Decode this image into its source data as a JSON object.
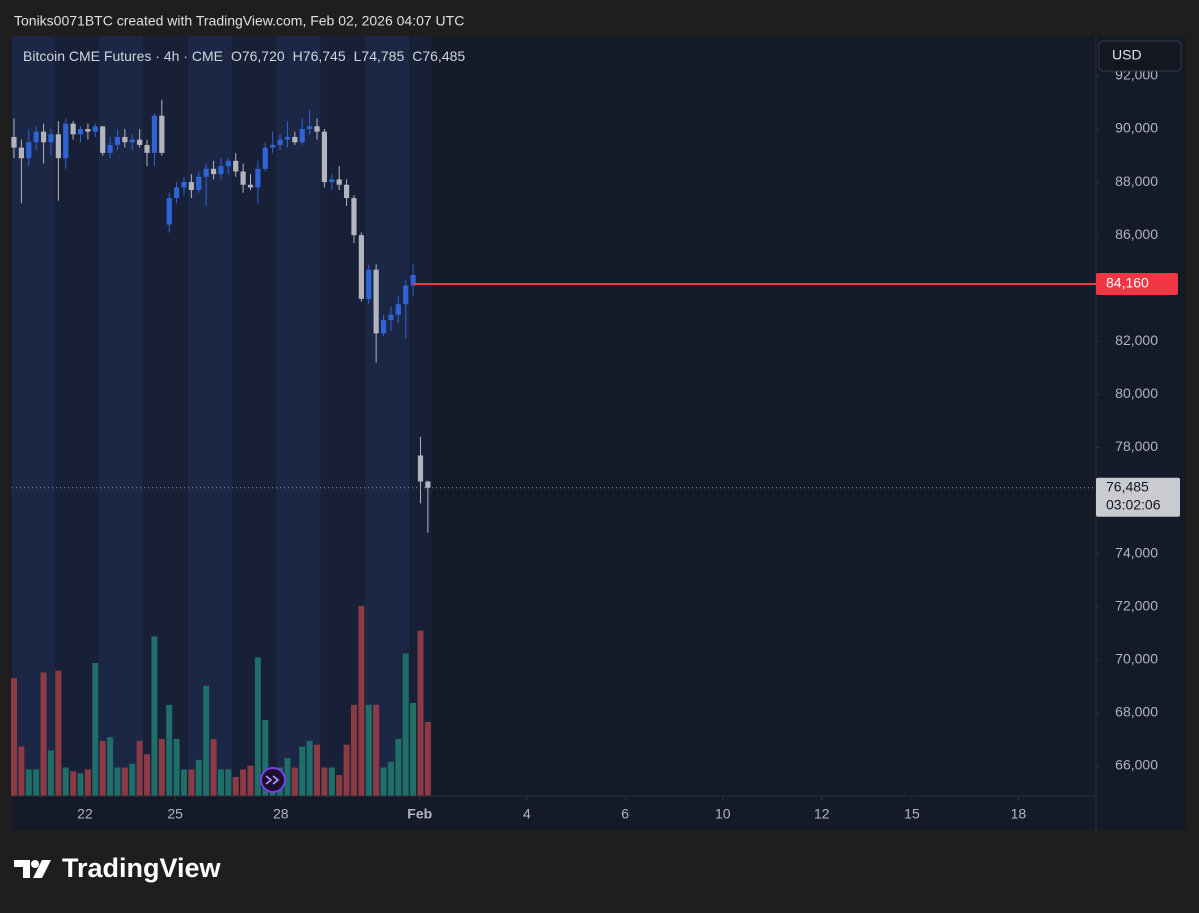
{
  "header": {
    "attribution": "Toniks0071BTC created with TradingView.com, Feb 02, 2026 04:07 UTC"
  },
  "footer": {
    "brand": "TradingView"
  },
  "chart_data": {
    "type": "candlestick",
    "title": "Bitcoin CME Futures · 4h · CME",
    "ohlc_legend": [
      {
        "prefix": "O",
        "label": "76,720"
      },
      {
        "prefix": "H",
        "label": "76,745"
      },
      {
        "prefix": "L",
        "label": "74,785"
      },
      {
        "prefix": "C",
        "label": "76,485"
      }
    ],
    "currency": "USD",
    "open": [
      89700,
      89300,
      88900,
      89500,
      89900,
      89500,
      89800,
      88900,
      90200,
      89800,
      90000,
      89900,
      90100,
      89100,
      89400,
      89700,
      89500,
      89600,
      89400,
      89100,
      90500,
      86400,
      87400,
      87800,
      88000,
      87700,
      88200,
      88500,
      88300,
      88600,
      88800,
      88400,
      87900,
      87800,
      88500,
      89300,
      89400,
      89600,
      89700,
      89500,
      90000,
      90100,
      89900,
      88000,
      88100,
      87900,
      87400,
      86000,
      83600,
      84700,
      82300,
      82800,
      83000,
      83400,
      84100,
      77700,
      76720
    ],
    "high": [
      90400,
      89600,
      90000,
      90100,
      90200,
      90000,
      90300,
      90400,
      90300,
      90100,
      90200,
      90200,
      90100,
      89700,
      90000,
      90000,
      89800,
      90000,
      89600,
      90600,
      91100,
      87600,
      88000,
      88200,
      88300,
      88400,
      88700,
      88800,
      88900,
      88900,
      89100,
      88700,
      88300,
      88800,
      89500,
      89900,
      89800,
      90300,
      89900,
      90400,
      90700,
      90400,
      90000,
      88300,
      88600,
      88100,
      87500,
      86100,
      84900,
      84900,
      83000,
      83300,
      83700,
      84300,
      84900,
      78400,
      76745
    ],
    "low": [
      88900,
      87200,
      88600,
      89200,
      88700,
      89000,
      87300,
      88500,
      89600,
      89500,
      89600,
      89700,
      89000,
      88900,
      89200,
      89300,
      89200,
      89300,
      88600,
      88600,
      89000,
      86100,
      87200,
      87500,
      87400,
      87600,
      87100,
      88100,
      88100,
      88300,
      88200,
      87600,
      87700,
      87200,
      88400,
      89100,
      89200,
      89300,
      89400,
      89400,
      89800,
      89600,
      87800,
      87700,
      87700,
      87100,
      85700,
      83500,
      83400,
      81200,
      82200,
      82400,
      82700,
      82100,
      83700,
      75900,
      74785
    ],
    "close": [
      89300,
      88900,
      89500,
      89900,
      89500,
      89800,
      88900,
      90200,
      89800,
      90000,
      89900,
      90100,
      89100,
      89400,
      89700,
      89500,
      89600,
      89400,
      89100,
      90500,
      89100,
      87400,
      87800,
      88000,
      87700,
      88200,
      88500,
      88300,
      88600,
      88800,
      88400,
      87900,
      87800,
      88500,
      89300,
      89400,
      89600,
      89700,
      89500,
      90000,
      90100,
      89900,
      88000,
      88100,
      87900,
      87400,
      86000,
      83600,
      84700,
      82300,
      82800,
      83000,
      83400,
      84100,
      84500,
      76720,
      76485
    ],
    "volume": [
      6200,
      2600,
      1400,
      1400,
      6500,
      2400,
      6600,
      1500,
      1300,
      1200,
      1400,
      7000,
      2900,
      3100,
      1500,
      1500,
      1700,
      2900,
      2200,
      8400,
      3000,
      4800,
      3000,
      1400,
      1400,
      1900,
      5800,
      3000,
      1400,
      1400,
      1000,
      1400,
      1600,
      7300,
      4000,
      1500,
      1500,
      2000,
      1500,
      2600,
      2900,
      2700,
      1500,
      1500,
      1100,
      2700,
      4800,
      10000,
      4800,
      4800,
      1500,
      1800,
      3000,
      7500,
      4900,
      8700,
      3900
    ],
    "up_color": "#2f63d6",
    "down_color": "#b2b5be",
    "volume_up_color": "#1f6f68",
    "volume_down_color": "#8c3b44",
    "xlim": [
      -0.27,
      146.4
    ],
    "xticks": [
      {
        "value": 9.6,
        "label": "22"
      },
      {
        "value": 21.8,
        "label": "25"
      },
      {
        "value": 36.1,
        "label": "28"
      },
      {
        "value": 54.9,
        "label": "Feb"
      },
      {
        "value": 69.4,
        "label": "4"
      },
      {
        "value": 82.7,
        "label": "6"
      },
      {
        "value": 95.9,
        "label": "10"
      },
      {
        "value": 109.3,
        "label": "12"
      },
      {
        "value": 121.5,
        "label": "15"
      },
      {
        "value": 135.9,
        "label": "18"
      }
    ],
    "ylim": [
      64870,
      93504
    ],
    "yticks": [
      {
        "value": 66000,
        "label": "66,000"
      },
      {
        "value": 68000,
        "label": "68,000"
      },
      {
        "value": 70000,
        "label": "70,000"
      },
      {
        "value": 72000,
        "label": "72,000"
      },
      {
        "value": 74000,
        "label": "74,000"
      },
      {
        "value": 76000,
        "label": "76,000"
      },
      {
        "value": 78000,
        "label": "78,000"
      },
      {
        "value": 80000,
        "label": "80,000"
      },
      {
        "value": 82000,
        "label": "82,000"
      },
      {
        "value": 84000,
        "label": "84,000"
      },
      {
        "value": 86000,
        "label": "86,000"
      },
      {
        "value": 88000,
        "label": "88,000"
      },
      {
        "value": 90000,
        "label": "90,000"
      },
      {
        "value": 92000,
        "label": "92,000"
      }
    ],
    "volume_ylim": [
      0,
      40000
    ],
    "hline": {
      "value": 84160,
      "label": "84,160",
      "color": "#f23645"
    },
    "last_price": {
      "value": 76485,
      "label": "76,485",
      "countdown": "03:02:06"
    }
  }
}
